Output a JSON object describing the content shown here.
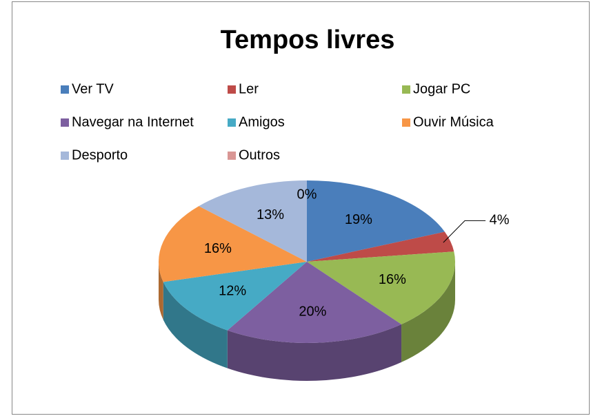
{
  "chart_data": {
    "type": "pie3d",
    "title": "Tempos livres",
    "categories": [
      "Ver TV",
      "Ler",
      "Jogar PC",
      "Navegar na Internet",
      "Amigos",
      "Ouvir Música",
      "Desporto",
      "Outros"
    ],
    "values": [
      19,
      4,
      16,
      20,
      12,
      16,
      13,
      0
    ],
    "value_labels": [
      "19%",
      "4%",
      "16%",
      "20%",
      "12%",
      "16%",
      "13%",
      "0%"
    ],
    "colors": [
      "#4a7ebb",
      "#be4b48",
      "#98b954",
      "#7d5fa0",
      "#46aac5",
      "#f79646",
      "#a5b8da",
      "#d99694"
    ],
    "legend": "top"
  }
}
